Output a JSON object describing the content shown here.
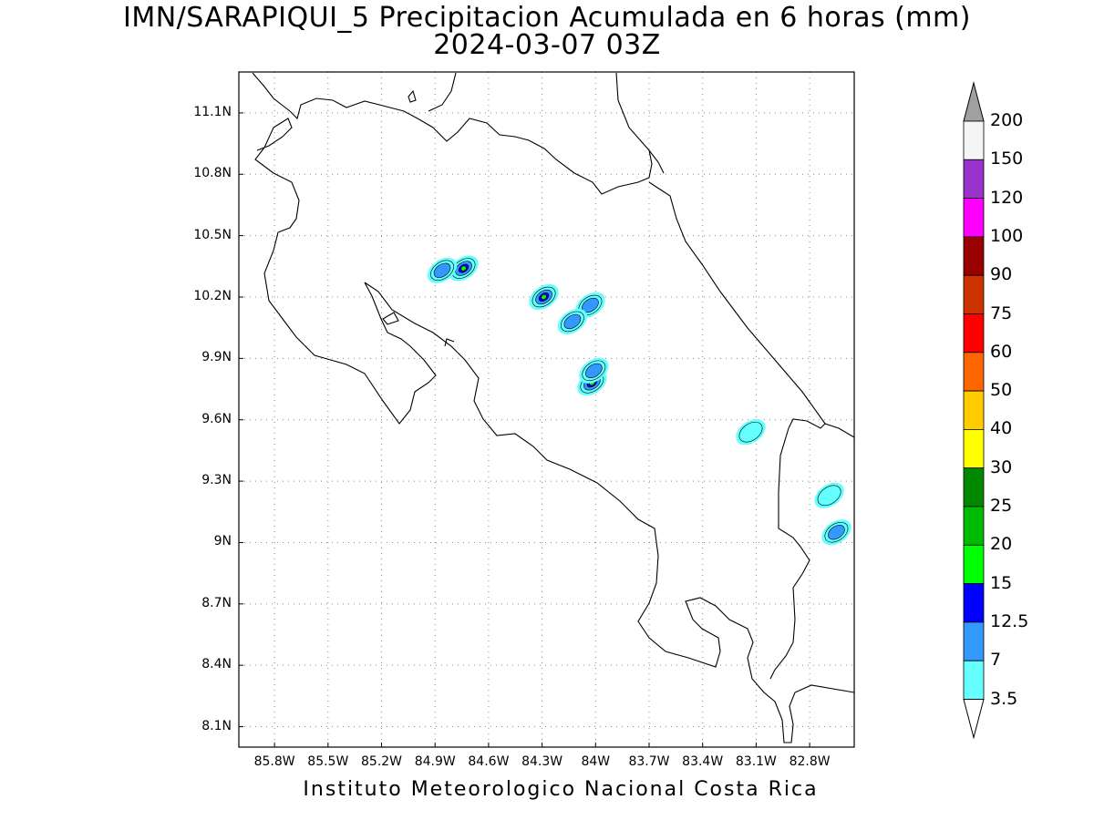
{
  "title_line1": "IMN/SARAPIQUI_5 Precipitacion Acumulada en 6 horas (mm)",
  "title_line2": "2024-03-07 03Z",
  "footer": "Instituto Meteorologico Nacional Costa Rica",
  "map": {
    "lon_range": [
      -86.0,
      -82.55
    ],
    "lat_range": [
      8.0,
      11.3
    ],
    "lon_ticks": [
      "85.8W",
      "85.5W",
      "85.2W",
      "84.9W",
      "84.6W",
      "84.3W",
      "84W",
      "83.7W",
      "83.4W",
      "83.1W",
      "82.8W"
    ],
    "lon_tick_values": [
      -85.8,
      -85.5,
      -85.2,
      -84.9,
      -84.6,
      -84.3,
      -84.0,
      -83.7,
      -83.4,
      -83.1,
      -82.8
    ],
    "lat_ticks": [
      "11.1N",
      "10.8N",
      "10.5N",
      "10.2N",
      "9.9N",
      "9.6N",
      "9.3N",
      "9N",
      "8.7N",
      "8.4N",
      "8.1N"
    ],
    "lat_tick_values": [
      11.1,
      10.8,
      10.5,
      10.2,
      9.9,
      9.6,
      9.3,
      9.0,
      8.7,
      8.4,
      8.1
    ],
    "grid": "dotted",
    "coastline_color": "#000000"
  },
  "colorbar": {
    "labels": [
      "200",
      "150",
      "120",
      "100",
      "90",
      "75",
      "60",
      "50",
      "40",
      "30",
      "25",
      "20",
      "15",
      "12.5",
      "7",
      "3.5"
    ],
    "colors_top_to_bottom": [
      "#f5f5f5",
      "#9933cc",
      "#ff00ff",
      "#990000",
      "#cc3300",
      "#ff0000",
      "#ff6600",
      "#ffcc00",
      "#ffff00",
      "#008800",
      "#00bb00",
      "#00ff00",
      "#0000ff",
      "#3399ff",
      "#66ffff"
    ],
    "over_color": "#a0a0a0",
    "under_color": "#ffffff"
  },
  "precip_cells": [
    {
      "lon": -84.74,
      "lat": 10.34,
      "level": 20
    },
    {
      "lon": -84.86,
      "lat": 10.33,
      "level": 12.5
    },
    {
      "lon": -84.29,
      "lat": 10.2,
      "level": 20
    },
    {
      "lon": -84.03,
      "lat": 10.16,
      "level": 12.5
    },
    {
      "lon": -84.13,
      "lat": 10.08,
      "level": 12.5
    },
    {
      "lon": -84.02,
      "lat": 9.78,
      "level": 20
    },
    {
      "lon": -84.01,
      "lat": 9.84,
      "level": 12.5
    },
    {
      "lon": -83.13,
      "lat": 9.54,
      "level": 7
    },
    {
      "lon": -82.65,
      "lat": 9.05,
      "level": 12.5
    },
    {
      "lon": -82.69,
      "lat": 9.23,
      "level": 7
    }
  ]
}
